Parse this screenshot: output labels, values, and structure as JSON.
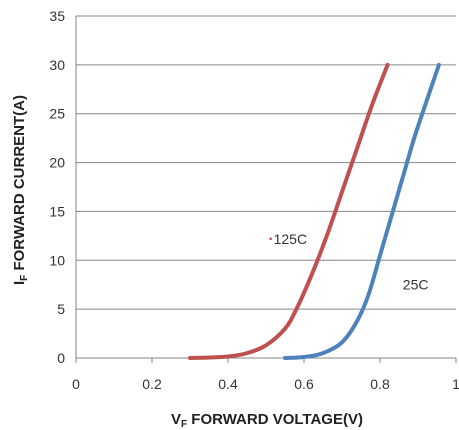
{
  "chart_data": {
    "type": "line",
    "xlabel": {
      "prefix": "V",
      "sub": "F",
      "text": " FORWARD VOLTAGE(V)"
    },
    "ylabel": {
      "prefix": "I",
      "sub": "F",
      "text": " FORWARD CURRENT(A)"
    },
    "xlim": [
      0,
      1
    ],
    "ylim": [
      0,
      35
    ],
    "xticks": [
      "0",
      "0.2",
      "0.4",
      "0.6",
      "0.8",
      "1"
    ],
    "yticks": [
      "0",
      "5",
      "10",
      "15",
      "20",
      "25",
      "30",
      "35"
    ],
    "grid": {
      "horizontal": true,
      "vertical": false
    },
    "series": [
      {
        "name": "125C",
        "color": "#c0504d",
        "x": [
          0.3,
          0.35,
          0.4,
          0.45,
          0.5,
          0.55,
          0.58,
          0.62,
          0.66,
          0.7,
          0.74,
          0.78,
          0.82
        ],
        "y": [
          0.0,
          0.05,
          0.15,
          0.5,
          1.3,
          3.0,
          5.0,
          8.5,
          12.5,
          17.0,
          21.5,
          26.0,
          30.0
        ]
      },
      {
        "name": "25C",
        "color": "#4f81bd",
        "x": [
          0.55,
          0.6,
          0.65,
          0.7,
          0.74,
          0.77,
          0.8,
          0.83,
          0.86,
          0.89,
          0.92,
          0.955
        ],
        "y": [
          0.0,
          0.1,
          0.5,
          1.6,
          3.8,
          6.5,
          10.5,
          14.5,
          18.5,
          22.5,
          26.0,
          30.0
        ]
      }
    ],
    "annotations": [
      {
        "text": "125C",
        "x": 0.52,
        "y": 12.2
      },
      {
        "text": "25C",
        "x": 0.86,
        "y": 7.5
      }
    ]
  }
}
